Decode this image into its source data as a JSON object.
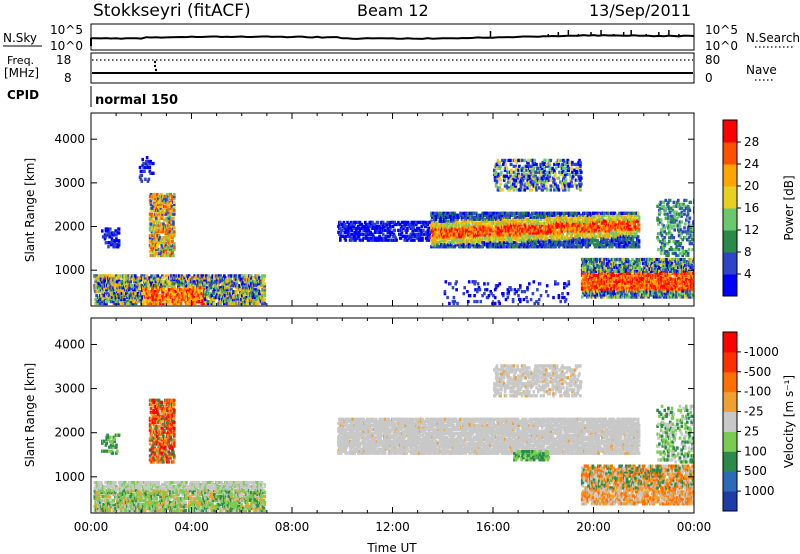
{
  "header": {
    "station": "Stokkseyri (fitACF)",
    "beam": "Beam 12",
    "date": "13/Sep/2011"
  },
  "strip_panels": {
    "nsky": {
      "left_label": "N.Sky",
      "right_label": "N.Search",
      "left_ticks": [
        "10^5",
        "10^0"
      ],
      "right_ticks": [
        "10^5",
        "10^0"
      ]
    },
    "freq": {
      "left_label_line1": "Freq.",
      "left_label_line2": "[MHz]",
      "right_label": "Nave",
      "left_ticks": [
        "18",
        "8"
      ],
      "right_ticks": [
        "80",
        "0"
      ]
    },
    "cpid": {
      "label": "CPID",
      "mode": "normal 150"
    }
  },
  "chart_data": [
    {
      "type": "heatmap",
      "name": "power",
      "ylabel": "Slant Range [km]",
      "xlabel": "",
      "ylim": [
        180,
        4600
      ],
      "y_ticks": [
        1000,
        2000,
        3000,
        4000
      ],
      "x_ticks_hours": [
        0,
        4,
        8,
        12,
        16,
        20,
        24
      ],
      "colorbar": {
        "label": "Power [dB]",
        "ticks": [
          "4",
          "8",
          "12",
          "16",
          "20",
          "24",
          "28"
        ],
        "colors": [
          "#0000ff",
          "#2e45c8",
          "#2a8a4a",
          "#6cc86c",
          "#e8d020",
          "#ffa500",
          "#ff5000",
          "#ff0000"
        ]
      },
      "regions": [
        {
          "t": [
            0.0,
            6.9
          ],
          "r": [
            230,
            850
          ],
          "level": "low-mid"
        },
        {
          "t": [
            2.2,
            3.4
          ],
          "r": [
            1350,
            2700
          ],
          "level": "high"
        },
        {
          "t": [
            10.0,
            21.8
          ],
          "r": [
            1500,
            2200
          ],
          "level": "high"
        },
        {
          "t": [
            16.0,
            19.5
          ],
          "r": [
            2800,
            3400
          ],
          "level": "low"
        },
        {
          "t": [
            19.5,
            24.0
          ],
          "r": [
            400,
            1200
          ],
          "level": "high"
        }
      ]
    },
    {
      "type": "heatmap",
      "name": "velocity",
      "ylabel": "Slant Range [km]",
      "xlabel": "Time UT",
      "ylim": [
        180,
        4600
      ],
      "y_ticks": [
        1000,
        2000,
        3000,
        4000
      ],
      "x_ticks": [
        "00:00",
        "04:00",
        "08:00",
        "12:00",
        "16:00",
        "20:00",
        "00:00"
      ],
      "colorbar": {
        "label": "Velocity [m s⁻¹]",
        "ticks": [
          "1000",
          "500",
          "100",
          "25",
          "-25",
          "-100",
          "-500",
          "-1000"
        ],
        "colors": [
          "#1e3ca8",
          "#2a6ab8",
          "#2a8a4a",
          "#7acc50",
          "#c8c8c8",
          "#f0a030",
          "#ff7000",
          "#ff3000",
          "#ff0000"
        ]
      }
    }
  ]
}
